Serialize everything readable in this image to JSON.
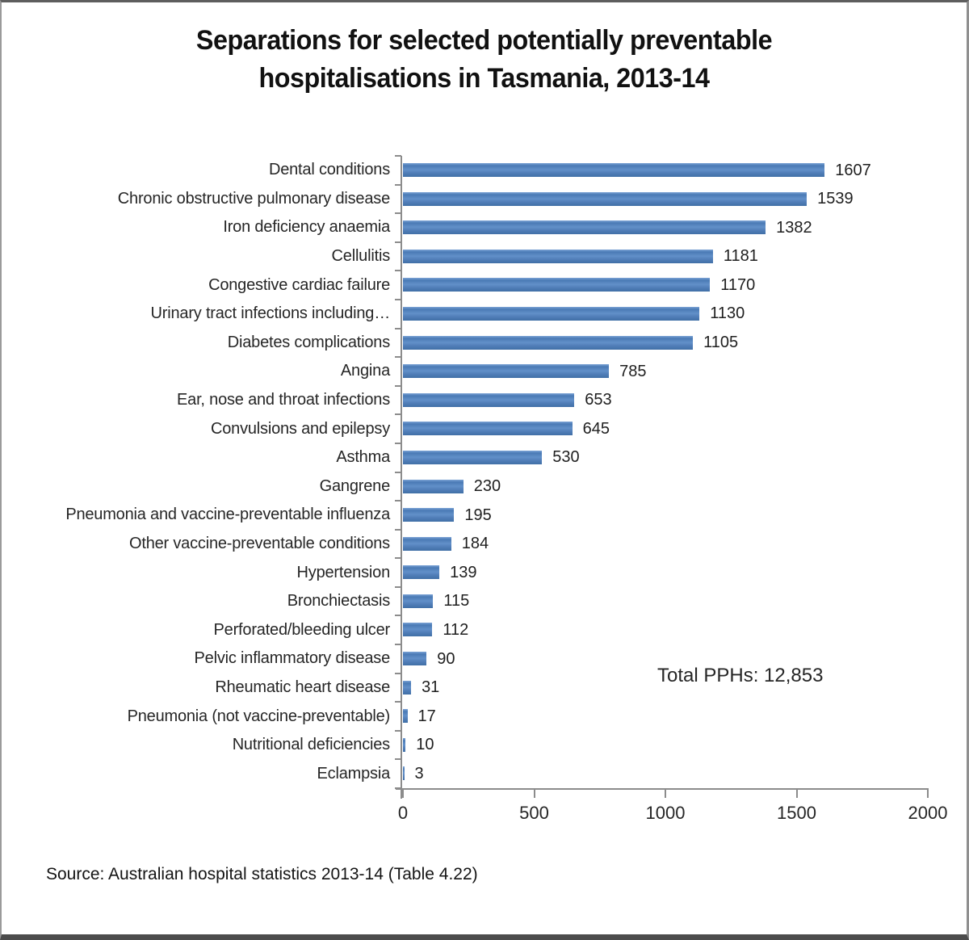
{
  "chart_data": {
    "type": "bar",
    "orientation": "horizontal",
    "title": "Separations for selected potentially preventable hospitalisations in Tasmania, 2013-14",
    "title_lines": [
      "Separations for selected potentially preventable",
      "hospitalisations in Tasmania, 2013-14"
    ],
    "categories": [
      "Dental conditions",
      "Chronic obstructive pulmonary disease",
      "Iron deficiency anaemia",
      "Cellulitis",
      "Congestive cardiac failure",
      "Urinary tract infections including…",
      "Diabetes complications",
      "Angina",
      "Ear, nose and throat infections",
      "Convulsions and epilepsy",
      "Asthma",
      "Gangrene",
      "Pneumonia and vaccine-preventable influenza",
      "Other vaccine-preventable conditions",
      "Hypertension",
      "Bronchiectasis",
      "Perforated/bleeding ulcer",
      "Pelvic inflammatory disease",
      "Rheumatic heart disease",
      "Pneumonia (not vaccine-preventable)",
      "Nutritional deficiencies",
      "Eclampsia"
    ],
    "values": [
      1607,
      1539,
      1382,
      1181,
      1170,
      1130,
      1105,
      785,
      653,
      645,
      530,
      230,
      195,
      184,
      139,
      115,
      112,
      90,
      31,
      17,
      10,
      3
    ],
    "xlim": [
      0,
      2000
    ],
    "x_ticks": [
      "0",
      "500",
      "1000",
      "1500",
      "2000"
    ],
    "x_tick_values": [
      0,
      500,
      1000,
      1500,
      2000
    ],
    "grid": false,
    "legend": null,
    "bar_color": "#4F81BD",
    "axis_color": "#8C8C8C",
    "annotation": "Total PPHs: 12,853",
    "source": "Source: Australian hospital statistics 2013-14 (Table 4.22)"
  }
}
